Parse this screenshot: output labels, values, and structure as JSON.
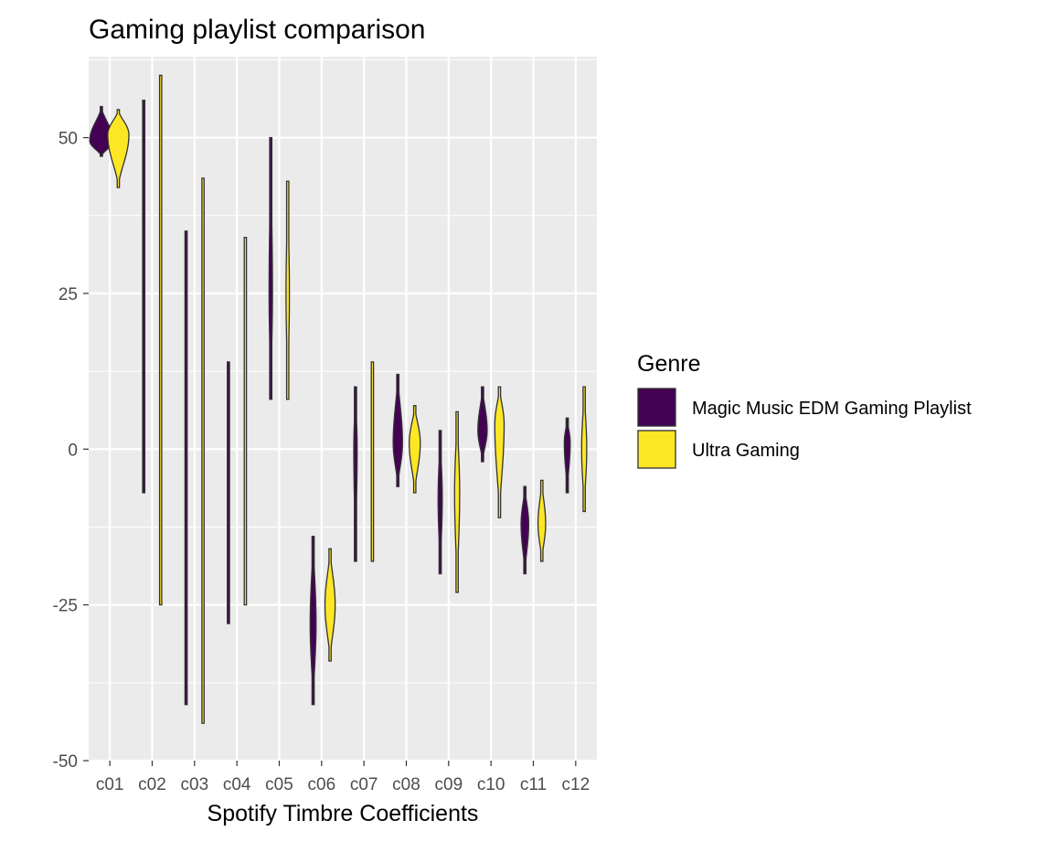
{
  "chart_data": {
    "type": "violin",
    "title": "Gaming playlist comparison",
    "xlabel": "Spotify Timbre Coefficients",
    "ylabel": "",
    "categories": [
      "c01",
      "c02",
      "c03",
      "c04",
      "c05",
      "c06",
      "c07",
      "c08",
      "c09",
      "c10",
      "c11",
      "c12"
    ],
    "y_ticks": [
      -50,
      -25,
      0,
      25,
      50
    ],
    "ylim": [
      -50,
      63
    ],
    "grid": true,
    "legend": {
      "title": "Genre",
      "placement": "right"
    },
    "series": [
      {
        "name": "Magic Music EDM Gaming Playlist",
        "color": "#440154",
        "distributions": [
          {
            "min": 47,
            "max": 55,
            "center": 49.5,
            "maxw": 0.55
          },
          {
            "min": -7,
            "max": 56,
            "center": 30,
            "maxw": 0.03
          },
          {
            "min": -41,
            "max": 35,
            "center": -20,
            "maxw": 0.03
          },
          {
            "min": -28,
            "max": 14,
            "center": 0,
            "maxw": 0.04
          },
          {
            "min": 8,
            "max": 50,
            "center": 25,
            "maxw": 0.08
          },
          {
            "min": -41,
            "max": -14,
            "center": -28,
            "maxw": 0.14
          },
          {
            "min": -18,
            "max": 10,
            "center": 0,
            "maxw": 0.08
          },
          {
            "min": -6,
            "max": 12,
            "center": 1,
            "maxw": 0.22
          },
          {
            "min": -20,
            "max": 3,
            "center": -8,
            "maxw": 0.1
          },
          {
            "min": -2,
            "max": 10,
            "center": 3,
            "maxw": 0.22
          },
          {
            "min": -20,
            "max": -6,
            "center": -12,
            "maxw": 0.18
          },
          {
            "min": -7,
            "max": 5,
            "center": 1,
            "maxw": 0.14
          }
        ]
      },
      {
        "name": "Ultra Gaming",
        "color": "#fde725",
        "distributions": [
          {
            "min": 42,
            "max": 54.5,
            "center": 50.5,
            "maxw": 0.5
          },
          {
            "min": -25,
            "max": 60,
            "center": 48,
            "maxw": 0.03
          },
          {
            "min": -44,
            "max": 43.5,
            "center": 0,
            "maxw": 0.02
          },
          {
            "min": -25,
            "max": 34,
            "center": 0,
            "maxw": 0.03
          },
          {
            "min": 8,
            "max": 43,
            "center": 25,
            "maxw": 0.08
          },
          {
            "min": -34,
            "max": -16,
            "center": -25,
            "maxw": 0.24
          },
          {
            "min": -18,
            "max": 14,
            "center": 6,
            "maxw": 0.05
          },
          {
            "min": -7,
            "max": 7,
            "center": 1,
            "maxw": 0.26
          },
          {
            "min": -23,
            "max": 6,
            "center": -7,
            "maxw": 0.12
          },
          {
            "min": -11,
            "max": 10,
            "center": 4,
            "maxw": 0.22
          },
          {
            "min": -18,
            "max": -5,
            "center": -12,
            "maxw": 0.18
          },
          {
            "min": -10,
            "max": 10,
            "center": 0,
            "maxw": 0.12
          }
        ]
      }
    ]
  }
}
